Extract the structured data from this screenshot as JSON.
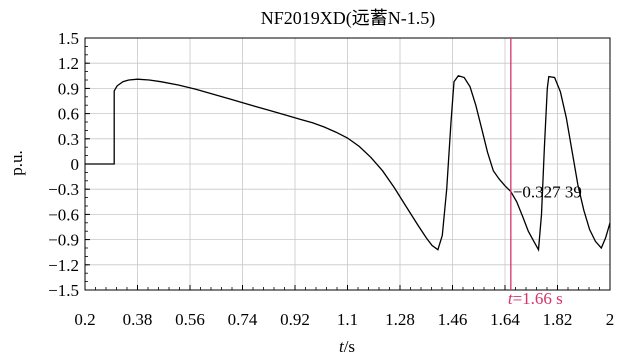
{
  "chart_data": {
    "type": "line",
    "title": "NF2019XD(远蓄N-1.5)",
    "ylabel": "p.u.",
    "xlabel_italic": "t",
    "xlabel_unit": "/s",
    "xlim": [
      0.2,
      2.0
    ],
    "ylim": [
      -1.5,
      1.5
    ],
    "x_ticks": [
      "0.2",
      "0.38",
      "0.56",
      "0.74",
      "0.92",
      "1.1",
      "1.28",
      "1.46",
      "1.64",
      "1.82",
      "2"
    ],
    "y_ticks": [
      "1.5",
      "1.2",
      "0.9",
      "0.6",
      "0.3",
      "0",
      "−0.3",
      "−0.6",
      "−0.9",
      "−1.2",
      "−1.5"
    ],
    "grid": true,
    "series": [
      {
        "color": "#000000",
        "points": [
          [
            0.2,
            0
          ],
          [
            0.3,
            0
          ],
          [
            0.3,
            0.87
          ],
          [
            0.31,
            0.93
          ],
          [
            0.33,
            0.98
          ],
          [
            0.35,
            1.0
          ],
          [
            0.38,
            1.01
          ],
          [
            0.42,
            1.0
          ],
          [
            0.46,
            0.98
          ],
          [
            0.52,
            0.94
          ],
          [
            0.58,
            0.89
          ],
          [
            0.64,
            0.83
          ],
          [
            0.7,
            0.77
          ],
          [
            0.76,
            0.71
          ],
          [
            0.82,
            0.65
          ],
          [
            0.88,
            0.59
          ],
          [
            0.94,
            0.53
          ],
          [
            0.98,
            0.49
          ],
          [
            1.02,
            0.44
          ],
          [
            1.06,
            0.38
          ],
          [
            1.1,
            0.31
          ],
          [
            1.14,
            0.21
          ],
          [
            1.18,
            0.08
          ],
          [
            1.22,
            -0.08
          ],
          [
            1.26,
            -0.28
          ],
          [
            1.3,
            -0.5
          ],
          [
            1.34,
            -0.72
          ],
          [
            1.37,
            -0.88
          ],
          [
            1.39,
            -0.97
          ],
          [
            1.41,
            -1.02
          ],
          [
            1.425,
            -0.85
          ],
          [
            1.44,
            -0.3
          ],
          [
            1.455,
            0.5
          ],
          [
            1.465,
            0.98
          ],
          [
            1.48,
            1.05
          ],
          [
            1.5,
            1.03
          ],
          [
            1.52,
            0.92
          ],
          [
            1.54,
            0.7
          ],
          [
            1.56,
            0.42
          ],
          [
            1.58,
            0.14
          ],
          [
            1.6,
            -0.08
          ],
          [
            1.62,
            -0.18
          ],
          [
            1.64,
            -0.26
          ],
          [
            1.66,
            -0.327
          ],
          [
            1.68,
            -0.45
          ],
          [
            1.7,
            -0.62
          ],
          [
            1.72,
            -0.8
          ],
          [
            1.74,
            -0.93
          ],
          [
            1.755,
            -1.02
          ],
          [
            1.765,
            -0.6
          ],
          [
            1.775,
            0.2
          ],
          [
            1.785,
            0.9
          ],
          [
            1.79,
            1.04
          ],
          [
            1.81,
            1.03
          ],
          [
            1.83,
            0.86
          ],
          [
            1.85,
            0.55
          ],
          [
            1.87,
            0.15
          ],
          [
            1.89,
            -0.25
          ],
          [
            1.91,
            -0.55
          ],
          [
            1.93,
            -0.78
          ],
          [
            1.95,
            -0.92
          ],
          [
            1.97,
            -1.0
          ],
          [
            1.985,
            -0.88
          ],
          [
            2.0,
            -0.7
          ]
        ]
      }
    ],
    "cursor": {
      "x": 1.66,
      "color": "#d6336c",
      "label_italic": "t",
      "label_rest": "=1.66 s",
      "value_label": "−0.327 39",
      "value": -0.32739
    }
  }
}
